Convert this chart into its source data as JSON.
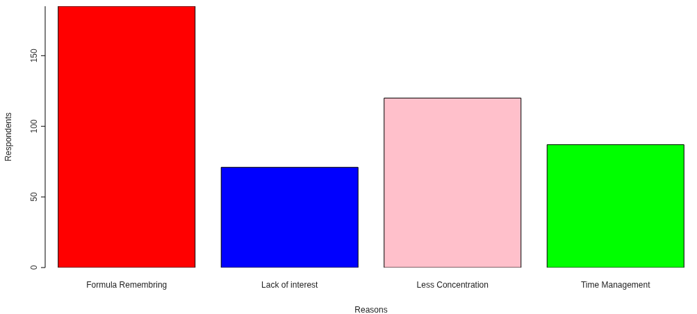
{
  "chart_data": {
    "type": "bar",
    "xlabel": "Reasons",
    "ylabel": "Respondents",
    "categories": [
      "Formula Remembring",
      "Lack of interest",
      "Less Concentration",
      "Time Management"
    ],
    "values": [
      185,
      71,
      120,
      87
    ],
    "colors": [
      "#ff0000",
      "#0000ff",
      "#ffc0cb",
      "#00ff00"
    ],
    "ylim": [
      0,
      185
    ],
    "yticks": [
      0,
      50,
      100,
      150
    ]
  }
}
